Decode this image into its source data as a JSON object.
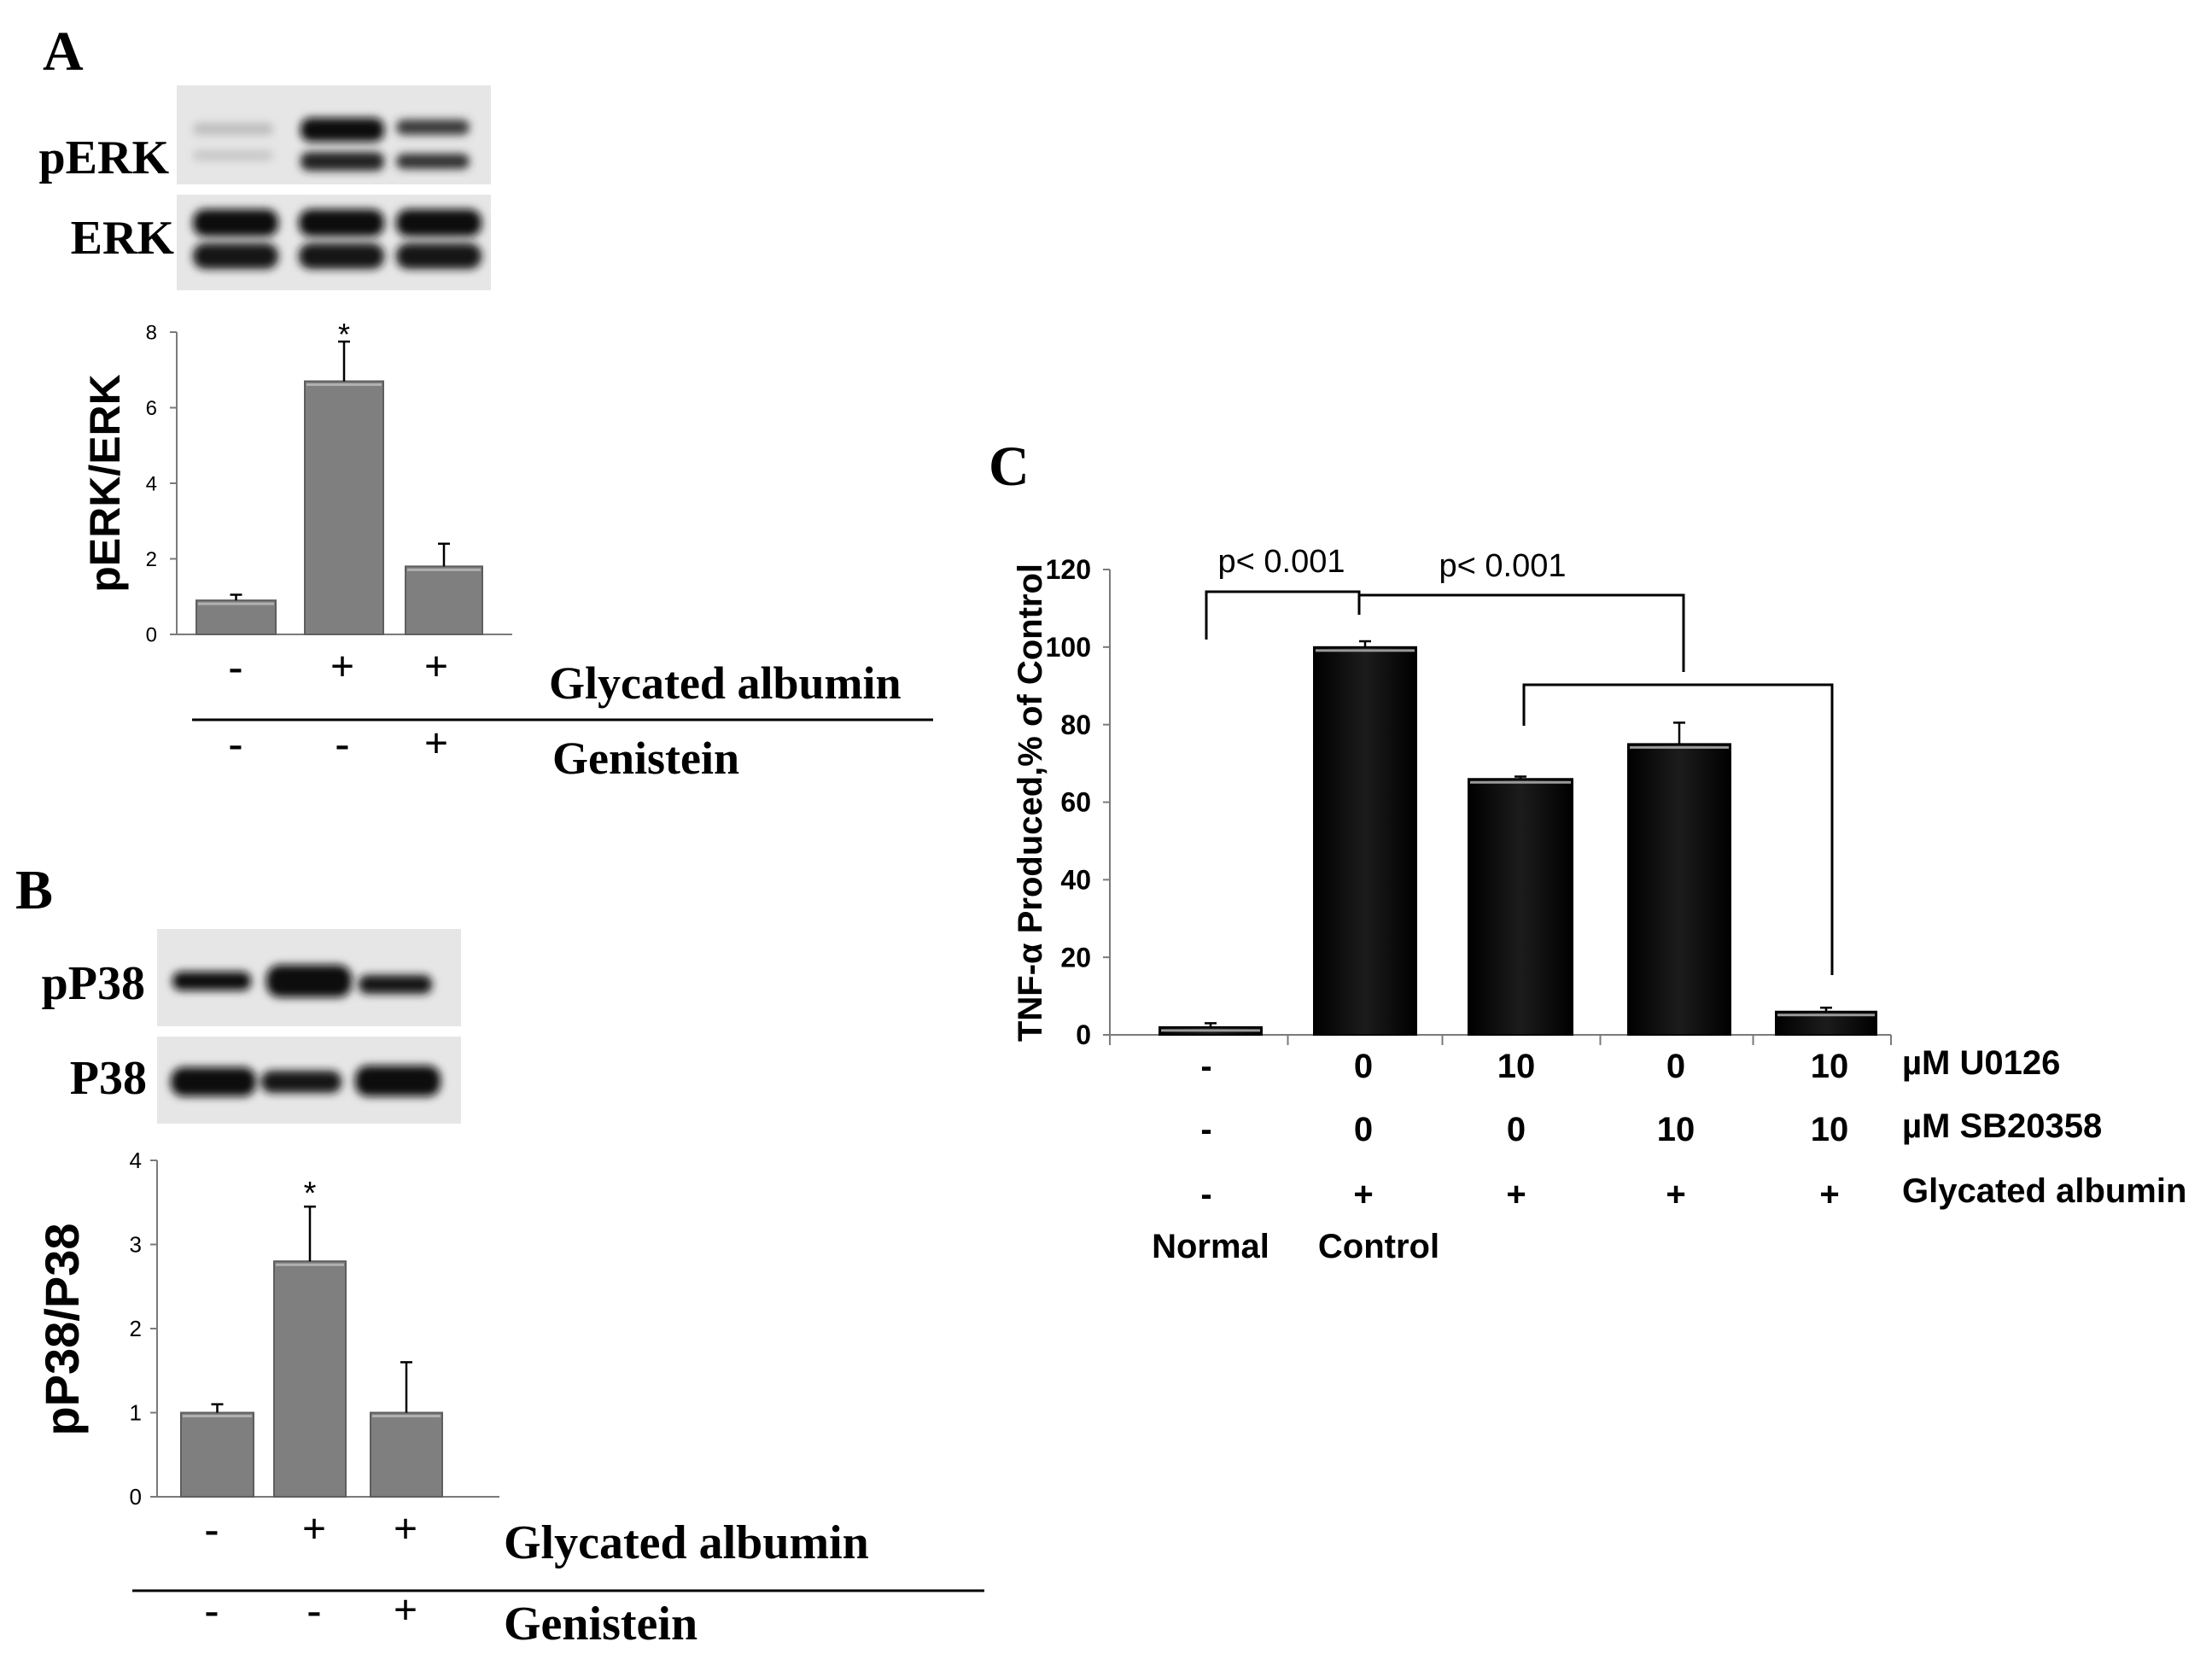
{
  "panels": {
    "A": {
      "label": "A",
      "blot_labels": [
        "pERK",
        "ERK"
      ],
      "row_labels": [
        "Glycated albumin",
        "Genistein"
      ],
      "rows": [
        [
          "-",
          "+",
          "+"
        ],
        [
          "-",
          "-",
          "+"
        ]
      ],
      "significance": [
        "",
        "*",
        ""
      ]
    },
    "B": {
      "label": "B",
      "blot_labels": [
        "pP38",
        "P38"
      ],
      "row_labels": [
        "Glycated albumin",
        "Genistein"
      ],
      "rows": [
        [
          "-",
          "+",
          "+"
        ],
        [
          "-",
          "-",
          "+"
        ]
      ],
      "significance": [
        "",
        "*",
        ""
      ]
    },
    "C": {
      "label": "C",
      "row_labels": [
        "µM U0126",
        "µM SB20358",
        "Glycated albumin"
      ],
      "rows": [
        [
          "-",
          "0",
          "10",
          "0",
          "10"
        ],
        [
          "-",
          "0",
          "0",
          "10",
          "10"
        ],
        [
          "-",
          "+",
          "+",
          "+",
          "+"
        ]
      ],
      "group_labels": [
        "Normal",
        "Control",
        "",
        "",
        ""
      ],
      "comparisons": [
        "p< 0.001",
        "p< 0.001"
      ]
    }
  },
  "chart_data": [
    {
      "panel": "A",
      "type": "bar",
      "ylabel": "pERK/ERK",
      "ylim": [
        0,
        8
      ],
      "yticks": [
        0,
        2,
        4,
        6,
        8
      ],
      "values": [
        0.9,
        6.7,
        1.8
      ],
      "errors": [
        0.15,
        1.05,
        0.6
      ],
      "bar_color": "#7f7f7f"
    },
    {
      "panel": "B",
      "type": "bar",
      "ylabel": "pP38/P38",
      "ylim": [
        0,
        4
      ],
      "yticks": [
        0,
        1,
        2,
        3,
        4
      ],
      "values": [
        1.0,
        2.8,
        1.0
      ],
      "errors": [
        0.1,
        0.65,
        0.6
      ],
      "bar_color": "#7f7f7f"
    },
    {
      "panel": "C",
      "type": "bar",
      "ylabel": "TNF-α Produced,% of Control",
      "ylim": [
        0,
        120
      ],
      "yticks": [
        0,
        20,
        40,
        60,
        80,
        100,
        120
      ],
      "values": [
        2,
        100,
        66,
        75,
        6
      ],
      "errors": [
        1,
        1.5,
        0.6,
        5.5,
        1
      ],
      "bar_color": "#0a0a0a"
    }
  ]
}
